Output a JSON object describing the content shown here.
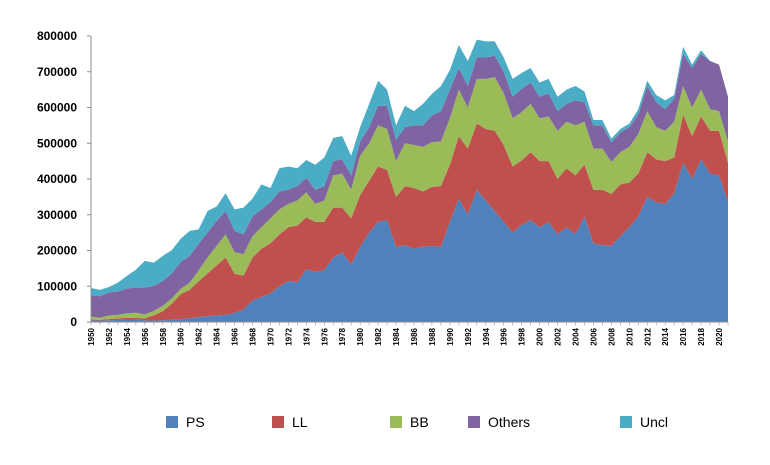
{
  "chart_data": {
    "type": "area",
    "stacked": true,
    "title": "",
    "xlabel": "",
    "ylabel": "",
    "ylim": [
      0,
      800000
    ],
    "yticks": [
      0,
      100000,
      200000,
      300000,
      400000,
      500000,
      600000,
      700000,
      800000
    ],
    "ytick_labels": [
      "0",
      "100000",
      "200000",
      "300000",
      "400000",
      "500000",
      "600000",
      "700000",
      "800000"
    ],
    "x": [
      1950,
      1951,
      1952,
      1953,
      1954,
      1955,
      1956,
      1957,
      1958,
      1959,
      1960,
      1961,
      1962,
      1963,
      1964,
      1965,
      1966,
      1967,
      1968,
      1969,
      1970,
      1971,
      1972,
      1973,
      1974,
      1975,
      1976,
      1977,
      1978,
      1979,
      1980,
      1981,
      1982,
      1983,
      1984,
      1985,
      1986,
      1987,
      1988,
      1989,
      1990,
      1991,
      1992,
      1993,
      1994,
      1995,
      1996,
      1997,
      1998,
      1999,
      2000,
      2001,
      2002,
      2003,
      2004,
      2005,
      2006,
      2007,
      2008,
      2009,
      2010,
      2011,
      2012,
      2013,
      2014,
      2015,
      2016,
      2017,
      2018,
      2019,
      2020,
      2021
    ],
    "xtick_labels": [
      "1950",
      "1952",
      "1954",
      "1956",
      "1958",
      "1960",
      "1962",
      "1964",
      "1966",
      "1968",
      "1970",
      "1972",
      "1974",
      "1976",
      "1978",
      "1980",
      "1982",
      "1984",
      "1986",
      "1988",
      "1990",
      "1992",
      "1994",
      "1996",
      "1998",
      "2000",
      "2002",
      "2004",
      "2006",
      "2008",
      "2010",
      "2012",
      "2014",
      "2016",
      "2018",
      "2020"
    ],
    "legend_position": "bottom",
    "grid": false,
    "series": [
      {
        "name": "PS",
        "color": "#4f81bd",
        "values": [
          5000,
          4000,
          5000,
          6000,
          7000,
          7000,
          5000,
          4000,
          5000,
          6000,
          8000,
          10000,
          14000,
          16000,
          18000,
          20000,
          25000,
          35000,
          60000,
          70000,
          80000,
          100000,
          115000,
          110000,
          148000,
          140000,
          145000,
          180000,
          195000,
          160000,
          210000,
          250000,
          280000,
          285000,
          210000,
          215000,
          205000,
          210000,
          213000,
          210000,
          280000,
          345000,
          300000,
          370000,
          340000,
          310000,
          280000,
          250000,
          272000,
          285000,
          265000,
          280000,
          245000,
          265000,
          245000,
          295000,
          220000,
          215000,
          213000,
          240000,
          265000,
          295000,
          350000,
          335000,
          330000,
          360000,
          445000,
          400000,
          455000,
          415000,
          410000,
          335000
        ]
      },
      {
        "name": "LL",
        "color": "#c0504d",
        "values": [
          2000,
          2000,
          3000,
          4000,
          5000,
          5000,
          5000,
          15000,
          25000,
          45000,
          70000,
          80000,
          100000,
          120000,
          140000,
          160000,
          110000,
          95000,
          120000,
          135000,
          140000,
          145000,
          150000,
          160000,
          145000,
          140000,
          135000,
          140000,
          125000,
          130000,
          145000,
          145000,
          155000,
          140000,
          140000,
          165000,
          170000,
          155000,
          165000,
          170000,
          160000,
          175000,
          185000,
          185000,
          200000,
          225000,
          215000,
          185000,
          180000,
          190000,
          185000,
          170000,
          155000,
          165000,
          165000,
          145000,
          150000,
          155000,
          145000,
          145000,
          125000,
          120000,
          125000,
          120000,
          120000,
          100000,
          135000,
          120000,
          120000,
          120000,
          125000,
          110000
        ]
      },
      {
        "name": "BB",
        "color": "#9bbb59",
        "values": [
          8000,
          6000,
          10000,
          10000,
          12000,
          14000,
          11000,
          12000,
          15000,
          15000,
          15000,
          20000,
          30000,
          45000,
          55000,
          65000,
          60000,
          60000,
          60000,
          60000,
          70000,
          70000,
          65000,
          70000,
          70000,
          50000,
          60000,
          90000,
          95000,
          80000,
          110000,
          105000,
          115000,
          115000,
          100000,
          120000,
          120000,
          125000,
          125000,
          125000,
          130000,
          130000,
          115000,
          125000,
          140000,
          150000,
          145000,
          135000,
          135000,
          135000,
          120000,
          125000,
          135000,
          130000,
          140000,
          120000,
          115000,
          115000,
          90000,
          90000,
          100000,
          110000,
          115000,
          90000,
          85000,
          100000,
          80000,
          80000,
          75000,
          60000,
          55000,
          60000
        ]
      },
      {
        "name": "Others",
        "color": "#8064a2",
        "values": [
          60000,
          60000,
          65000,
          65000,
          70000,
          70000,
          75000,
          70000,
          70000,
          70000,
          75000,
          75000,
          75000,
          70000,
          70000,
          65000,
          60000,
          55000,
          55000,
          50000,
          45000,
          50000,
          40000,
          40000,
          40000,
          40000,
          40000,
          40000,
          40000,
          40000,
          40000,
          45000,
          55000,
          65000,
          60000,
          45000,
          55000,
          60000,
          75000,
          85000,
          80000,
          60000,
          60000,
          60000,
          60000,
          60000,
          60000,
          60000,
          65000,
          60000,
          60000,
          65000,
          55000,
          50000,
          70000,
          55000,
          65000,
          65000,
          55000,
          55000,
          55000,
          55000,
          70000,
          70000,
          60000,
          65000,
          90000,
          110000,
          100000,
          135000,
          130000,
          125000
        ]
      },
      {
        "name": "Uncl",
        "color": "#4bacc6",
        "values": [
          20000,
          18000,
          15000,
          25000,
          35000,
          50000,
          75000,
          65000,
          70000,
          65000,
          65000,
          70000,
          40000,
          60000,
          40000,
          50000,
          60000,
          75000,
          50000,
          70000,
          40000,
          65000,
          65000,
          50000,
          50000,
          70000,
          80000,
          65000,
          65000,
          55000,
          40000,
          65000,
          70000,
          45000,
          40000,
          60000,
          40000,
          60000,
          60000,
          70000,
          55000,
          65000,
          70000,
          50000,
          45000,
          40000,
          40000,
          50000,
          45000,
          40000,
          40000,
          40000,
          40000,
          40000,
          40000,
          30000,
          15000,
          15000,
          10000,
          10000,
          10000,
          15000,
          15000,
          20000,
          25000,
          10000,
          20000,
          10000,
          10000,
          0,
          0,
          0
        ]
      }
    ]
  }
}
